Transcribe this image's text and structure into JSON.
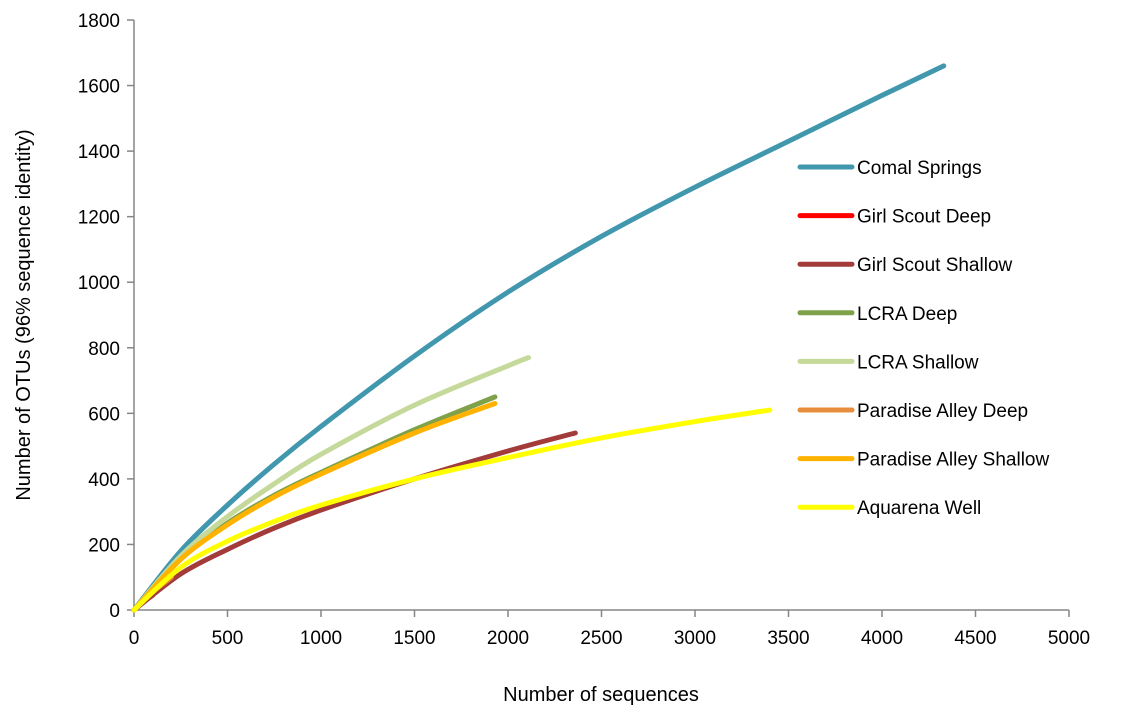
{
  "chart_data": {
    "type": "line",
    "title": "",
    "xlabel": "Number of sequences",
    "ylabel": "Number of OTUs (96% sequence identity)",
    "xlim": [
      0,
      5000
    ],
    "ylim": [
      0,
      1800
    ],
    "xticks": [
      "0",
      "500",
      "1000",
      "1500",
      "2000",
      "2500",
      "3000",
      "3500",
      "4000",
      "4500",
      "5000"
    ],
    "yticks": [
      "0",
      "200",
      "400",
      "600",
      "800",
      "1000",
      "1200",
      "1400",
      "1600",
      "1800"
    ],
    "grid": false,
    "legend_position": "right",
    "series": [
      {
        "name": "Comal Springs",
        "color": "#4197AD",
        "x": [
          0,
          250,
          500,
          750,
          1000,
          1500,
          2000,
          2500,
          3000,
          3500,
          4000,
          4330
        ],
        "y": [
          0,
          180,
          320,
          445,
          560,
          775,
          970,
          1140,
          1290,
          1430,
          1570,
          1660
        ]
      },
      {
        "name": "Girl Scout Deep",
        "color": "#FF0000",
        "x": [
          0,
          50,
          100
        ],
        "y": [
          0,
          25,
          45
        ]
      },
      {
        "name": "Girl Scout Shallow",
        "color": "#A33B3B",
        "x": [
          0,
          250,
          500,
          750,
          1000,
          1500,
          2000,
          2360
        ],
        "y": [
          0,
          110,
          185,
          250,
          305,
          400,
          485,
          540
        ]
      },
      {
        "name": "LCRA Deep",
        "color": "#7EA14A",
        "x": [
          0,
          250,
          500,
          750,
          1000,
          1500,
          1930
        ],
        "y": [
          0,
          155,
          265,
          350,
          420,
          550,
          650
        ]
      },
      {
        "name": "LCRA Shallow",
        "color": "#C4D99A",
        "x": [
          0,
          250,
          500,
          750,
          1000,
          1500,
          2000,
          2110
        ],
        "y": [
          0,
          165,
          285,
          385,
          475,
          625,
          745,
          770
        ]
      },
      {
        "name": "Paradise Alley Deep",
        "color": "#E88D3C",
        "x": [
          0,
          100,
          200
        ],
        "y": [
          0,
          55,
          100
        ]
      },
      {
        "name": "Paradise Alley Shallow",
        "color": "#FFB300",
        "x": [
          0,
          250,
          500,
          750,
          1000,
          1500,
          1930
        ],
        "y": [
          0,
          155,
          260,
          345,
          415,
          540,
          630
        ]
      },
      {
        "name": "Aquarena Well",
        "color": "#FFFF00",
        "x": [
          0,
          250,
          500,
          750,
          1000,
          1500,
          2000,
          2500,
          3000,
          3400
        ],
        "y": [
          0,
          130,
          210,
          270,
          320,
          400,
          465,
          525,
          575,
          610
        ]
      }
    ]
  }
}
